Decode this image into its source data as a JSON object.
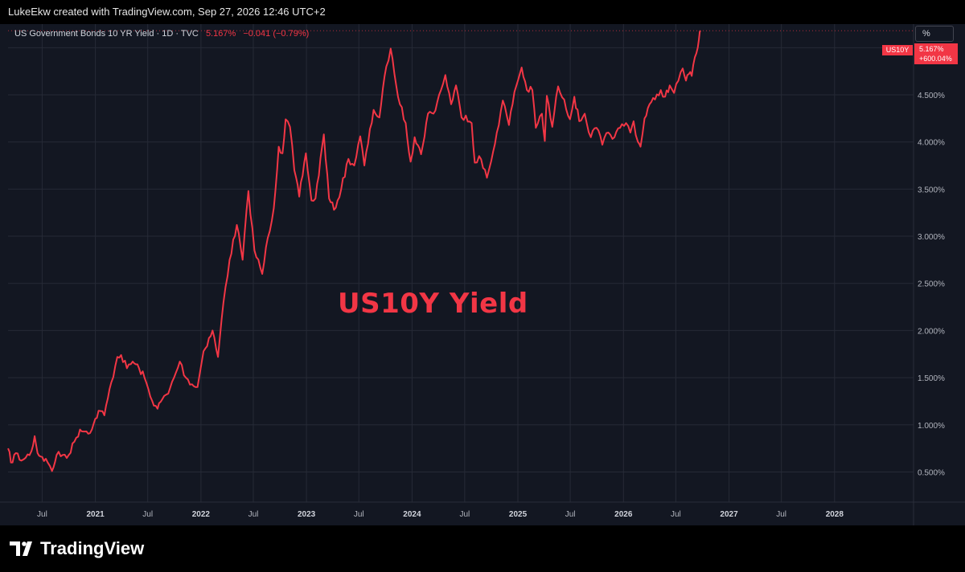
{
  "header": {
    "creator_line": "LukeEkw created with TradingView.com, Sep 27, 2026 12:46 UTC+2"
  },
  "legend": {
    "title": "US Government Bonds 10 YR Yield · 1D · TVC",
    "last": "5.167%",
    "change": "−0.041 (−0.79%)"
  },
  "scale_unit": "%",
  "price_label": {
    "symbol": "US10Y",
    "value": "5.167%",
    "pct": "+600.04%"
  },
  "watermark": "US10Y Yield",
  "brand": "TradingView",
  "colors": {
    "series": "#f23645",
    "background": "#131722",
    "grid": "#262a36",
    "text": "#b2b5be"
  },
  "chart_data": {
    "type": "line",
    "title": "US Government Bonds 10 YR Yield",
    "xlabel": "",
    "ylabel": "",
    "grid": true,
    "y_scale": "percent",
    "ylim": [
      0.18,
      5.25
    ],
    "xlim": [
      "2020-03-05",
      "2028-09-30"
    ],
    "yticks": [
      "0.500%",
      "1.000%",
      "1.500%",
      "2.000%",
      "2.500%",
      "3.000%",
      "3.500%",
      "4.000%",
      "4.500%",
      "5.000%"
    ],
    "xticks": [
      {
        "label": "Jul",
        "date": "2020-07-01",
        "year": false
      },
      {
        "label": "2021",
        "date": "2021-01-01",
        "year": true
      },
      {
        "label": "Jul",
        "date": "2021-07-01",
        "year": false
      },
      {
        "label": "2022",
        "date": "2022-01-01",
        "year": true
      },
      {
        "label": "Jul",
        "date": "2022-07-01",
        "year": false
      },
      {
        "label": "2023",
        "date": "2023-01-01",
        "year": true
      },
      {
        "label": "Jul",
        "date": "2023-07-01",
        "year": false
      },
      {
        "label": "2024",
        "date": "2024-01-01",
        "year": true
      },
      {
        "label": "Jul",
        "date": "2024-07-01",
        "year": false
      },
      {
        "label": "2025",
        "date": "2025-01-01",
        "year": true
      },
      {
        "label": "Jul",
        "date": "2025-07-01",
        "year": false
      },
      {
        "label": "2026",
        "date": "2026-01-01",
        "year": true
      },
      {
        "label": "Jul",
        "date": "2026-07-01",
        "year": false
      },
      {
        "label": "2027",
        "date": "2027-01-01",
        "year": true
      },
      {
        "label": "Jul",
        "date": "2027-07-01",
        "year": false
      },
      {
        "label": "2028",
        "date": "2028-01-01",
        "year": true
      }
    ],
    "series": [
      {
        "values": [
          [
            "2020-03-05",
            0.75
          ],
          [
            "2020-03-15",
            0.6
          ],
          [
            "2020-04-01",
            0.7
          ],
          [
            "2020-04-20",
            0.62
          ],
          [
            "2020-05-05",
            0.65
          ],
          [
            "2020-05-25",
            0.72
          ],
          [
            "2020-06-05",
            0.88
          ],
          [
            "2020-06-15",
            0.7
          ],
          [
            "2020-07-01",
            0.66
          ],
          [
            "2020-07-20",
            0.6
          ],
          [
            "2020-08-04",
            0.51
          ],
          [
            "2020-08-20",
            0.68
          ],
          [
            "2020-09-10",
            0.68
          ],
          [
            "2020-10-01",
            0.68
          ],
          [
            "2020-10-20",
            0.82
          ],
          [
            "2020-11-09",
            0.95
          ],
          [
            "2020-12-01",
            0.93
          ],
          [
            "2020-12-20",
            0.95
          ],
          [
            "2021-01-12",
            1.15
          ],
          [
            "2021-02-01",
            1.1
          ],
          [
            "2021-02-25",
            1.45
          ],
          [
            "2021-03-18",
            1.72
          ],
          [
            "2021-03-31",
            1.74
          ],
          [
            "2021-04-20",
            1.6
          ],
          [
            "2021-05-10",
            1.67
          ],
          [
            "2021-06-01",
            1.6
          ],
          [
            "2021-06-20",
            1.5
          ],
          [
            "2021-07-10",
            1.3
          ],
          [
            "2021-08-04",
            1.17
          ],
          [
            "2021-08-20",
            1.27
          ],
          [
            "2021-09-10",
            1.33
          ],
          [
            "2021-09-30",
            1.5
          ],
          [
            "2021-10-20",
            1.67
          ],
          [
            "2021-11-10",
            1.5
          ],
          [
            "2021-12-01",
            1.43
          ],
          [
            "2021-12-20",
            1.4
          ],
          [
            "2022-01-10",
            1.78
          ],
          [
            "2022-02-10",
            2.0
          ],
          [
            "2022-03-01",
            1.72
          ],
          [
            "2022-03-20",
            2.3
          ],
          [
            "2022-04-10",
            2.75
          ],
          [
            "2022-05-05",
            3.12
          ],
          [
            "2022-05-25",
            2.75
          ],
          [
            "2022-06-14",
            3.48
          ],
          [
            "2022-07-05",
            2.85
          ],
          [
            "2022-08-01",
            2.6
          ],
          [
            "2022-08-20",
            2.98
          ],
          [
            "2022-09-10",
            3.3
          ],
          [
            "2022-09-27",
            3.95
          ],
          [
            "2022-10-10",
            3.88
          ],
          [
            "2022-10-21",
            4.24
          ],
          [
            "2022-11-05",
            4.16
          ],
          [
            "2022-11-20",
            3.7
          ],
          [
            "2022-12-07",
            3.42
          ],
          [
            "2022-12-30",
            3.88
          ],
          [
            "2023-01-18",
            3.38
          ],
          [
            "2023-02-01",
            3.4
          ],
          [
            "2023-03-02",
            4.08
          ],
          [
            "2023-03-20",
            3.4
          ],
          [
            "2023-04-06",
            3.28
          ],
          [
            "2023-05-01",
            3.5
          ],
          [
            "2023-05-26",
            3.82
          ],
          [
            "2023-06-15",
            3.75
          ],
          [
            "2023-07-06",
            4.06
          ],
          [
            "2023-07-20",
            3.75
          ],
          [
            "2023-08-21",
            4.34
          ],
          [
            "2023-09-10",
            4.26
          ],
          [
            "2023-10-04",
            4.8
          ],
          [
            "2023-10-19",
            4.99
          ],
          [
            "2023-11-01",
            4.72
          ],
          [
            "2023-11-20",
            4.4
          ],
          [
            "2023-12-10",
            4.2
          ],
          [
            "2023-12-27",
            3.79
          ],
          [
            "2024-01-10",
            4.05
          ],
          [
            "2024-02-01",
            3.87
          ],
          [
            "2024-02-25",
            4.3
          ],
          [
            "2024-03-15",
            4.3
          ],
          [
            "2024-04-10",
            4.55
          ],
          [
            "2024-04-25",
            4.71
          ],
          [
            "2024-05-15",
            4.4
          ],
          [
            "2024-06-01",
            4.6
          ],
          [
            "2024-06-20",
            4.26
          ],
          [
            "2024-07-05",
            4.28
          ],
          [
            "2024-07-25",
            4.2
          ],
          [
            "2024-08-05",
            3.78
          ],
          [
            "2024-08-20",
            3.85
          ],
          [
            "2024-09-16",
            3.62
          ],
          [
            "2024-10-01",
            3.8
          ],
          [
            "2024-10-20",
            4.1
          ],
          [
            "2024-11-10",
            4.44
          ],
          [
            "2024-12-01",
            4.18
          ],
          [
            "2024-12-20",
            4.53
          ],
          [
            "2025-01-14",
            4.79
          ],
          [
            "2025-02-01",
            4.55
          ],
          [
            "2025-02-20",
            4.55
          ],
          [
            "2025-03-04",
            4.15
          ],
          [
            "2025-03-25",
            4.3
          ],
          [
            "2025-04-04",
            4.01
          ],
          [
            "2025-04-11",
            4.49
          ],
          [
            "2025-04-30",
            4.16
          ],
          [
            "2025-05-20",
            4.59
          ],
          [
            "2025-06-10",
            4.45
          ],
          [
            "2025-06-30",
            4.24
          ],
          [
            "2025-07-15",
            4.48
          ],
          [
            "2025-08-01",
            4.22
          ],
          [
            "2025-08-20",
            4.3
          ],
          [
            "2025-09-10",
            4.05
          ],
          [
            "2025-09-30",
            4.15
          ],
          [
            "2025-10-20",
            3.97
          ],
          [
            "2025-11-10",
            4.1
          ],
          [
            "2025-12-01",
            4.05
          ],
          [
            "2025-12-20",
            4.15
          ],
          [
            "2026-01-10",
            4.2
          ],
          [
            "2026-01-25",
            4.1
          ],
          [
            "2026-02-05",
            4.22
          ],
          [
            "2026-02-20",
            4.0
          ],
          [
            "2026-03-01",
            3.95
          ],
          [
            "2026-03-15",
            4.25
          ],
          [
            "2026-04-01",
            4.4
          ],
          [
            "2026-04-20",
            4.45
          ],
          [
            "2026-05-10",
            4.55
          ],
          [
            "2026-05-25",
            4.48
          ],
          [
            "2026-06-10",
            4.6
          ],
          [
            "2026-06-25",
            4.52
          ],
          [
            "2026-07-10",
            4.65
          ],
          [
            "2026-07-25",
            4.78
          ],
          [
            "2026-08-05",
            4.65
          ],
          [
            "2026-08-15",
            4.72
          ],
          [
            "2026-08-25",
            4.7
          ],
          [
            "2026-09-05",
            4.9
          ],
          [
            "2026-09-15",
            5.0
          ],
          [
            "2026-09-22",
            5.17
          ],
          [
            "2026-09-25",
            5.18
          ]
        ]
      }
    ]
  }
}
